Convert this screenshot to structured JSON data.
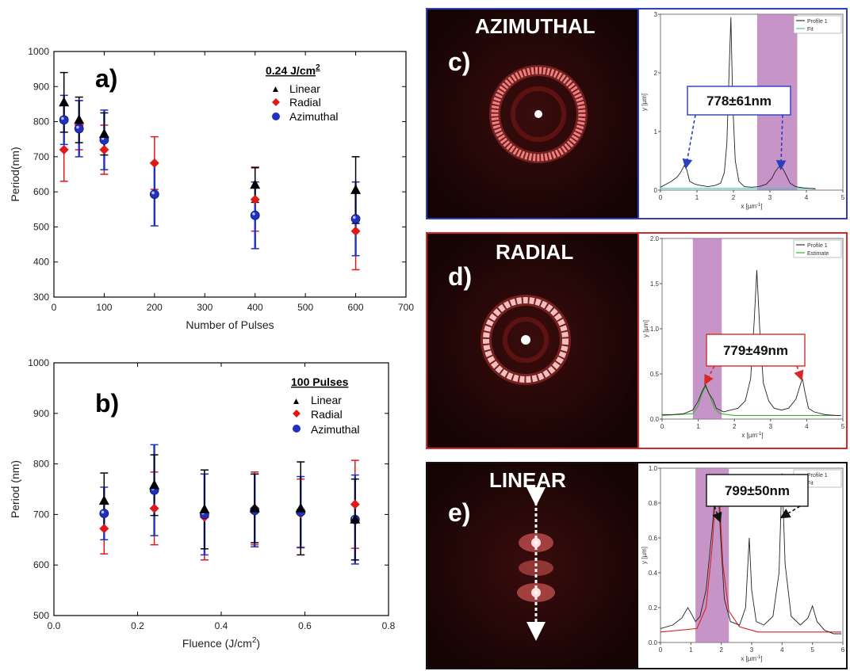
{
  "panels": {
    "a": {
      "letter": "a)"
    },
    "b": {
      "letter": "b)"
    },
    "c": {
      "letter": "c)",
      "mode_title": "AZIMUTHAL",
      "frame_color": "#2b3fbf",
      "callout": "778±61nm"
    },
    "d": {
      "letter": "d)",
      "mode_title": "RADIAL",
      "frame_color": "#d42a2a",
      "callout": "779±49nm"
    },
    "e": {
      "letter": "e)",
      "mode_title": "LINEAR",
      "frame_color": "#111111",
      "callout": "799±50nm"
    }
  },
  "series_styles": {
    "Linear": {
      "marker": "triangle",
      "color": "#000000"
    },
    "Radial": {
      "marker": "diamond",
      "color": "#e01818"
    },
    "Azimuthal": {
      "marker": "sphere",
      "color": "#2030c0"
    }
  },
  "chart_data": [
    {
      "id": "a",
      "type": "scatter",
      "error_bars": true,
      "xlabel": "Number of Pulses",
      "ylabel": "Period(nm)",
      "xlim": [
        0,
        700
      ],
      "ylim": [
        300,
        1000
      ],
      "xticks": [
        0,
        100,
        200,
        300,
        400,
        500,
        600,
        700
      ],
      "yticks": [
        300,
        400,
        500,
        600,
        700,
        800,
        900,
        1000
      ],
      "legend_title": "0.24 J/cm",
      "legend_title_sup": "2",
      "legend_position": "top-right",
      "series": [
        {
          "name": "Linear",
          "x": [
            20,
            50,
            100,
            400,
            600
          ],
          "y": [
            855,
            805,
            765,
            620,
            605
          ],
          "err": [
            85,
            65,
            60,
            50,
            95
          ]
        },
        {
          "name": "Radial",
          "x": [
            20,
            50,
            100,
            200,
            400,
            600
          ],
          "y": [
            720,
            790,
            720,
            682,
            578,
            488
          ],
          "err": [
            90,
            70,
            70,
            75,
            90,
            110
          ]
        },
        {
          "name": "Azimuthal",
          "x": [
            20,
            50,
            100,
            200,
            400,
            600
          ],
          "y": [
            805,
            780,
            748,
            593,
            533,
            523
          ],
          "err": [
            70,
            80,
            85,
            90,
            95,
            105
          ]
        }
      ]
    },
    {
      "id": "b",
      "type": "scatter",
      "error_bars": true,
      "xlabel": "Fluence (J/cm",
      "xlabel_sup": "2",
      "xlabel_tail": ")",
      "ylabel": "Period (nm)",
      "xlim": [
        0.0,
        0.8
      ],
      "ylim": [
        500,
        1000
      ],
      "xticks": [
        0.0,
        0.2,
        0.4,
        0.6,
        0.8
      ],
      "yticks": [
        500,
        600,
        700,
        800,
        900,
        1000
      ],
      "legend_title": "100 Pulses",
      "legend_position": "top-right",
      "series": [
        {
          "name": "Linear",
          "x": [
            0.12,
            0.24,
            0.36,
            0.48,
            0.59,
            0.72
          ],
          "y": [
            727,
            758,
            710,
            712,
            712,
            690
          ],
          "err": [
            55,
            60,
            78,
            68,
            92,
            80
          ]
        },
        {
          "name": "Radial",
          "x": [
            0.12,
            0.24,
            0.36,
            0.48,
            0.59,
            0.72
          ],
          "y": [
            672,
            712,
            695,
            712,
            702,
            720
          ],
          "err": [
            50,
            72,
            85,
            72,
            68,
            87
          ]
        },
        {
          "name": "Azimuthal",
          "x": [
            0.12,
            0.24,
            0.36,
            0.48,
            0.59,
            0.72
          ],
          "y": [
            702,
            748,
            700,
            708,
            705,
            690
          ],
          "err": [
            52,
            90,
            80,
            72,
            70,
            88
          ]
        }
      ]
    },
    {
      "id": "c",
      "type": "line",
      "xlabel": "x [µm",
      "xlabel_sup": "-1",
      "xlabel_tail": "]",
      "ylabel": "y [µm]",
      "xlim": [
        0,
        5
      ],
      "ylim": [
        0,
        3
      ],
      "xticks": [
        0,
        1,
        2,
        3,
        4,
        5
      ],
      "yticks": [
        0,
        1,
        2,
        3
      ],
      "legend": [
        "Profile 1",
        "Fit"
      ],
      "legend_colors": [
        "#333333",
        "#3cc8c0"
      ],
      "highlight_band": [
        2.65,
        3.75
      ],
      "profile": {
        "x": [
          0,
          0.15,
          0.3,
          0.45,
          0.55,
          0.65,
          0.72,
          0.8,
          0.95,
          1.1,
          1.3,
          1.5,
          1.65,
          1.75,
          1.82,
          1.88,
          1.93,
          1.98,
          2.05,
          2.15,
          2.3,
          2.5,
          2.7,
          2.9,
          3.05,
          3.15,
          3.25,
          3.35,
          3.45,
          3.55,
          3.7,
          3.9,
          4.1,
          4.25
        ],
        "y": [
          0.05,
          0.1,
          0.15,
          0.22,
          0.3,
          0.42,
          0.35,
          0.15,
          0.1,
          0.08,
          0.06,
          0.08,
          0.12,
          0.3,
          0.8,
          2.0,
          2.95,
          1.5,
          0.5,
          0.15,
          0.06,
          0.05,
          0.06,
          0.1,
          0.2,
          0.32,
          0.4,
          0.37,
          0.25,
          0.12,
          0.06,
          0.04,
          0.03,
          0.02
        ]
      },
      "fit": {
        "x": [
          0,
          4.25
        ],
        "y": [
          0.03,
          0.03
        ]
      },
      "arrow_targets": [
        [
          0.7,
          0.4
        ],
        [
          3.3,
          0.38
        ]
      ]
    },
    {
      "id": "d",
      "type": "line",
      "xlabel": "x [µm",
      "xlabel_sup": "-1",
      "xlabel_tail": "]",
      "ylabel": "y [µm]",
      "xlim": [
        0,
        5
      ],
      "ylim": [
        0,
        2.0
      ],
      "xticks": [
        0,
        1,
        2,
        3,
        4,
        5
      ],
      "yticks": [
        0,
        0.5,
        1.0,
        1.5,
        2.0
      ],
      "legend": [
        "Profile 1",
        "Estimate"
      ],
      "legend_colors": [
        "#333333",
        "#2fb52f"
      ],
      "highlight_band": [
        0.85,
        1.65
      ],
      "profile": {
        "x": [
          0,
          0.3,
          0.6,
          0.85,
          1.0,
          1.1,
          1.2,
          1.3,
          1.4,
          1.5,
          1.7,
          1.9,
          2.1,
          2.3,
          2.45,
          2.55,
          2.62,
          2.7,
          2.8,
          2.95,
          3.1,
          3.3,
          3.5,
          3.7,
          3.8,
          3.88,
          3.95,
          4.05,
          4.2,
          4.5,
          4.8,
          4.95
        ],
        "y": [
          0.05,
          0.05,
          0.06,
          0.1,
          0.2,
          0.3,
          0.38,
          0.28,
          0.22,
          0.12,
          0.08,
          0.1,
          0.12,
          0.2,
          0.45,
          1.1,
          1.65,
          1.0,
          0.4,
          0.2,
          0.12,
          0.1,
          0.12,
          0.22,
          0.35,
          0.45,
          0.3,
          0.12,
          0.08,
          0.05,
          0.04,
          0.04
        ]
      },
      "fit": {
        "x": [
          0,
          0.85,
          1.0,
          1.1,
          1.2,
          1.3,
          1.45,
          1.6,
          2.0,
          4.95
        ],
        "y": [
          0.04,
          0.06,
          0.15,
          0.28,
          0.36,
          0.28,
          0.12,
          0.06,
          0.04,
          0.04
        ]
      },
      "arrow_targets": [
        [
          1.2,
          0.4
        ],
        [
          3.85,
          0.45
        ]
      ]
    },
    {
      "id": "e",
      "type": "line",
      "xlabel": "x [µm",
      "xlabel_sup": "-1",
      "xlabel_tail": "]",
      "ylabel": "y [µm]",
      "xlim": [
        0,
        6
      ],
      "ylim": [
        0,
        1.0
      ],
      "xticks": [
        0,
        1,
        2,
        3,
        4,
        5,
        6
      ],
      "yticks": [
        0,
        0.2,
        0.4,
        0.6,
        0.8,
        1.0
      ],
      "legend": [
        "Profile 1",
        "Fit"
      ],
      "legend_colors": [
        "#333333",
        "#d92020"
      ],
      "highlight_band": [
        1.15,
        2.25
      ],
      "profile": {
        "x": [
          0,
          0.4,
          0.7,
          0.9,
          1.0,
          1.15,
          1.3,
          1.5,
          1.7,
          1.82,
          1.9,
          1.98,
          2.1,
          2.3,
          2.6,
          2.8,
          2.92,
          3.0,
          3.15,
          3.4,
          3.7,
          3.9,
          4.0,
          4.1,
          4.3,
          4.6,
          4.85,
          5.0,
          5.15,
          5.4,
          5.7,
          5.95
        ],
        "y": [
          0.08,
          0.1,
          0.14,
          0.2,
          0.17,
          0.12,
          0.15,
          0.3,
          0.65,
          0.9,
          0.88,
          0.6,
          0.25,
          0.12,
          0.1,
          0.2,
          0.6,
          0.3,
          0.12,
          0.1,
          0.15,
          0.4,
          0.97,
          0.45,
          0.15,
          0.1,
          0.14,
          0.21,
          0.12,
          0.07,
          0.05,
          0.05
        ]
      },
      "fit": {
        "x": [
          0,
          1.2,
          1.5,
          1.7,
          1.8,
          1.88,
          1.95,
          2.05,
          2.25,
          2.6,
          3.2,
          5.95
        ],
        "y": [
          0.06,
          0.08,
          0.2,
          0.55,
          0.8,
          0.88,
          0.8,
          0.45,
          0.18,
          0.09,
          0.06,
          0.06
        ]
      },
      "arrow_targets": [
        [
          1.95,
          0.7
        ],
        [
          4.0,
          0.72
        ]
      ]
    }
  ]
}
